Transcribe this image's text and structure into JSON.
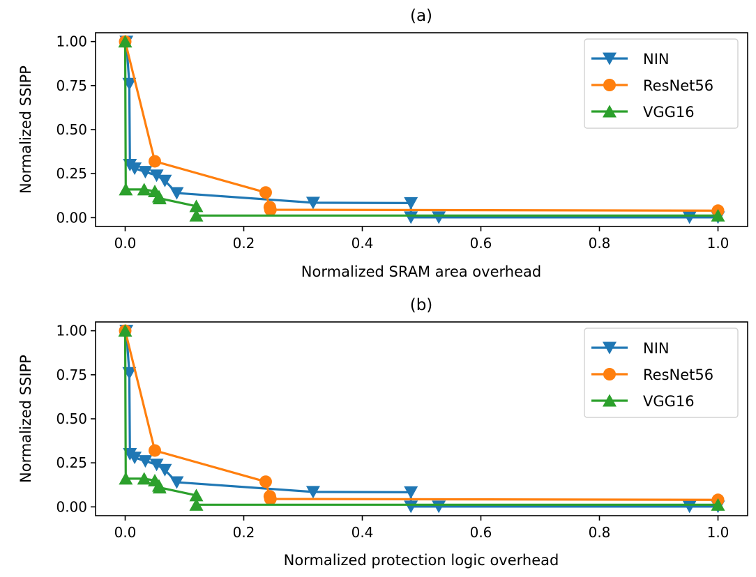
{
  "chart_data": [
    {
      "type": "line",
      "title": "(a)",
      "xlabel": "Normalized SRAM area overhead",
      "ylabel": "Normalized SSIPP",
      "xlim": [
        -0.05,
        1.05
      ],
      "ylim": [
        -0.05,
        1.05
      ],
      "xticks": [
        0.0,
        0.2,
        0.4,
        0.6,
        0.8,
        1.0
      ],
      "xtick_labels": [
        "0.0",
        "0.2",
        "0.4",
        "0.6",
        "0.8",
        "1.0"
      ],
      "yticks": [
        0.0,
        0.25,
        0.5,
        0.75,
        1.0
      ],
      "ytick_labels": [
        "0.00",
        "0.25",
        "0.50",
        "0.75",
        "1.00"
      ],
      "grid": false,
      "legend_position": "top-right",
      "series": [
        {
          "name": "NIN",
          "color": "#1f77b4",
          "marker": "triangle-down",
          "x": [
            0.002,
            0.007,
            0.008,
            0.016,
            0.034,
            0.053,
            0.067,
            0.087,
            0.317,
            0.482,
            0.482,
            0.529,
            0.952,
            1.0
          ],
          "y": [
            1.0,
            0.76,
            0.3,
            0.28,
            0.26,
            0.24,
            0.21,
            0.14,
            0.085,
            0.083,
            0.002,
            0.002,
            0.002,
            0.002
          ]
        },
        {
          "name": "ResNet56",
          "color": "#ff7f0e",
          "marker": "circle",
          "x": [
            0.0,
            0.05,
            0.237,
            0.244,
            0.245,
            1.0
          ],
          "y": [
            1.0,
            0.32,
            0.143,
            0.06,
            0.045,
            0.04
          ]
        },
        {
          "name": "VGG16",
          "color": "#2ca02c",
          "marker": "triangle-up",
          "x": [
            0.0,
            0.001,
            0.032,
            0.05,
            0.057,
            0.058,
            0.12,
            0.12,
            1.0
          ],
          "y": [
            1.0,
            0.16,
            0.16,
            0.15,
            0.12,
            0.11,
            0.065,
            0.012,
            0.012
          ]
        }
      ]
    },
    {
      "type": "line",
      "title": "(b)",
      "xlabel": "Normalized protection logic overhead",
      "ylabel": "Normalized SSIPP",
      "xlim": [
        -0.05,
        1.05
      ],
      "ylim": [
        -0.05,
        1.05
      ],
      "xticks": [
        0.0,
        0.2,
        0.4,
        0.6,
        0.8,
        1.0
      ],
      "xtick_labels": [
        "0.0",
        "0.2",
        "0.4",
        "0.6",
        "0.8",
        "1.0"
      ],
      "yticks": [
        0.0,
        0.25,
        0.5,
        0.75,
        1.0
      ],
      "ytick_labels": [
        "0.00",
        "0.25",
        "0.50",
        "0.75",
        "1.00"
      ],
      "grid": false,
      "legend_position": "top-right",
      "series": [
        {
          "name": "NIN",
          "color": "#1f77b4",
          "marker": "triangle-down",
          "x": [
            0.002,
            0.007,
            0.008,
            0.016,
            0.034,
            0.053,
            0.067,
            0.087,
            0.317,
            0.482,
            0.482,
            0.529,
            0.952,
            1.0
          ],
          "y": [
            1.0,
            0.76,
            0.3,
            0.28,
            0.26,
            0.24,
            0.21,
            0.14,
            0.085,
            0.083,
            0.002,
            0.002,
            0.002,
            0.002
          ]
        },
        {
          "name": "ResNet56",
          "color": "#ff7f0e",
          "marker": "circle",
          "x": [
            0.0,
            0.05,
            0.237,
            0.244,
            0.245,
            1.0
          ],
          "y": [
            1.0,
            0.32,
            0.143,
            0.06,
            0.045,
            0.04
          ]
        },
        {
          "name": "VGG16",
          "color": "#2ca02c",
          "marker": "triangle-up",
          "x": [
            0.0,
            0.001,
            0.032,
            0.05,
            0.057,
            0.058,
            0.12,
            0.12,
            1.0
          ],
          "y": [
            1.0,
            0.16,
            0.16,
            0.15,
            0.12,
            0.11,
            0.065,
            0.012,
            0.012
          ]
        }
      ]
    }
  ]
}
